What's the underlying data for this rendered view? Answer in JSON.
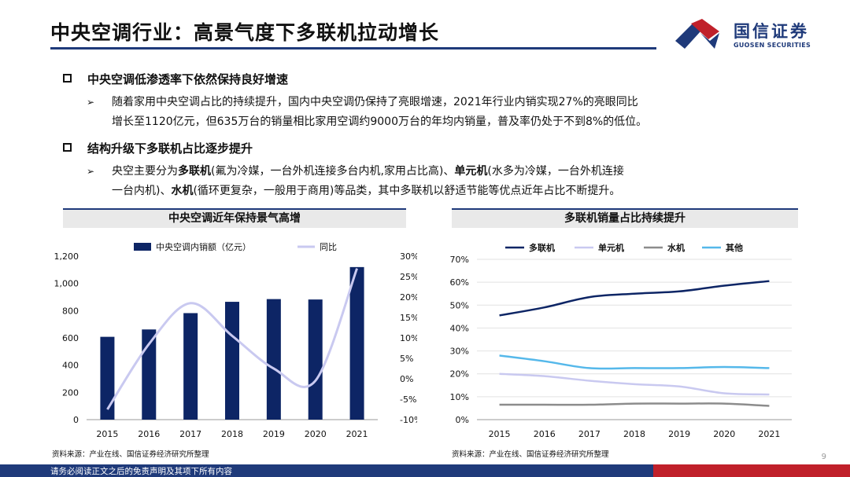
{
  "header": {
    "title": "中央空调行业：高景气度下多联机拉动增长",
    "logo_cn": "国信证券",
    "logo_en": "GUOSEN SECURITIES"
  },
  "sections": [
    {
      "heading": "中央空调低渗透率下依然保持良好增速",
      "lines": [
        "随着家用中央空调占比的持续提升，国内中央空调仍保持了亮眼增速，2021年行业内销实现27%的亮眼同比",
        "增长至1120亿元，但635万台的销量相比家用空调约9000万台的年均内销量，普及率仍处于不到8%的低位。"
      ]
    },
    {
      "heading": "结构升级下多联机占比逐步提升",
      "line1_parts": [
        "央空主要分为",
        "多联机",
        "(氟为冷媒，一台外机连接多台内机,家用占比高)、",
        "单元机",
        "(水多为冷媒，一台外机连接"
      ],
      "line2_parts": [
        "一台内机)、",
        "水机",
        "(循环更复杂，一般用于商用)等品类，其中多联机以舒适节能等优点近年占比不断提升。"
      ]
    }
  ],
  "left_panel_title": "中央空调近年保持景气高增",
  "right_panel_title": "多联机销量占比持续提升",
  "chart_data": [
    {
      "type": "bar",
      "title": "中央空调近年保持景气高增",
      "categories": [
        "2015",
        "2016",
        "2017",
        "2018",
        "2019",
        "2020",
        "2021"
      ],
      "series": [
        {
          "name": "中央空调内销额（亿元）",
          "kind": "bar",
          "axis": "left",
          "color": "#0d2565",
          "values": [
            608,
            662,
            782,
            865,
            885,
            882,
            1120
          ]
        },
        {
          "name": "同比",
          "kind": "line",
          "axis": "right",
          "color": "#c9c9f0",
          "values": [
            -7.5,
            8.5,
            18.5,
            10.5,
            2.5,
            -0.5,
            27
          ]
        }
      ],
      "ylim_left": [
        0,
        1200
      ],
      "yticks_left": [
        "0",
        "200",
        "400",
        "600",
        "800",
        "1,000",
        "1,200"
      ],
      "ylim_right": [
        -10,
        30
      ],
      "yticks_right": [
        "-10%",
        "-5%",
        "0%",
        "5%",
        "10%",
        "15%",
        "20%",
        "25%",
        "30%"
      ],
      "legend": "top"
    },
    {
      "type": "line",
      "title": "多联机销量占比持续提升",
      "categories": [
        "2015",
        "2016",
        "2017",
        "2018",
        "2019",
        "2020",
        "2021"
      ],
      "series": [
        {
          "name": "多联机",
          "color": "#0d2565",
          "values": [
            45.5,
            49,
            53.5,
            55,
            56,
            58.5,
            60.5
          ]
        },
        {
          "name": "单元机",
          "color": "#c9c9f0",
          "values": [
            20,
            19,
            17,
            15.5,
            14.5,
            11.5,
            11
          ]
        },
        {
          "name": "水机",
          "color": "#8c8c8c",
          "values": [
            6.5,
            6.5,
            6.5,
            7,
            7,
            7,
            6
          ]
        },
        {
          "name": "其他",
          "color": "#55b8ea",
          "values": [
            28,
            25.5,
            22.5,
            22.5,
            22.5,
            23,
            22.5
          ]
        }
      ],
      "ylim": [
        0,
        70
      ],
      "yticks": [
        "0%",
        "10%",
        "20%",
        "30%",
        "40%",
        "50%",
        "60%",
        "70%"
      ],
      "legend": "top"
    }
  ],
  "left_source": "资料来源：产业在线、国信证券经济研究所整理",
  "right_source": "资料来源：产业在线、国信证券经济研究所整理",
  "page_number": "9",
  "footer_text": "请务必阅读正文之后的免责声明及其项下所有内容"
}
